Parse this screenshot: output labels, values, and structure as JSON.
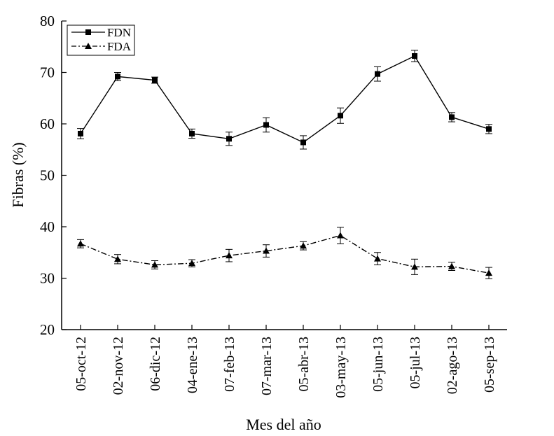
{
  "chart_data": {
    "type": "line",
    "title": "",
    "xlabel": "Mes del año",
    "ylabel": "Fibras (%)",
    "ylim": [
      20,
      80
    ],
    "yticks": [
      20,
      30,
      40,
      50,
      60,
      70,
      80
    ],
    "grid": false,
    "legend_position": "top-left",
    "categories": [
      "05-oct-12",
      "02-nov-12",
      "06-dic-12",
      "04-ene-13",
      "07-feb-13",
      "07-mar-13",
      "05-abr-13",
      "03-may-13",
      "05-jun-13",
      "05-jul-13",
      "02-ago-13",
      "05-sep-13"
    ],
    "series": [
      {
        "name": "FDN",
        "marker": "square",
        "line_style": "solid",
        "color": "#000000",
        "values": [
          58.1,
          69.2,
          68.5,
          58.1,
          57.1,
          59.8,
          56.4,
          61.6,
          69.7,
          73.2,
          61.3,
          59.0
        ],
        "errors": [
          1.0,
          0.8,
          0.6,
          0.9,
          1.3,
          1.4,
          1.3,
          1.5,
          1.4,
          1.1,
          0.9,
          0.9
        ]
      },
      {
        "name": "FDA",
        "marker": "triangle",
        "line_style": "dashdot",
        "color": "#000000",
        "values": [
          36.7,
          33.7,
          32.6,
          32.9,
          34.4,
          35.3,
          36.3,
          38.3,
          33.8,
          32.2,
          32.3,
          31.0
        ],
        "errors": [
          0.8,
          0.9,
          0.8,
          0.7,
          1.2,
          1.2,
          0.8,
          1.6,
          1.2,
          1.5,
          0.8,
          1.1
        ]
      }
    ]
  }
}
